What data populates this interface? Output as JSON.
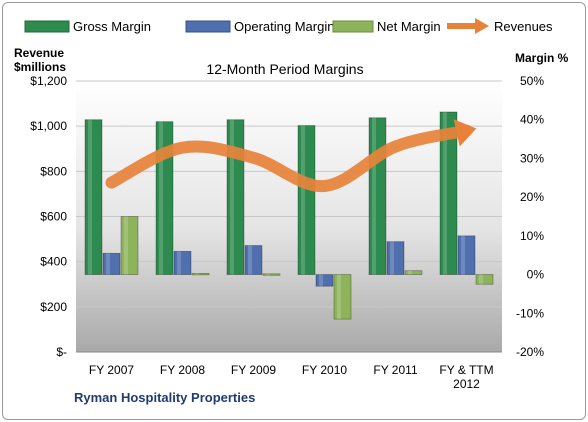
{
  "chart_data": {
    "type": "bar",
    "title": "12-Month Period Margins",
    "company": "Ryman Hospitality Properties",
    "categories": [
      "FY 2007",
      "FY 2008",
      "FY 2009",
      "FY 2010",
      "FY 2011",
      "FY & TTM|2012"
    ],
    "left_axis": {
      "label_line1": "Revenue",
      "label_line2": "$millions",
      "ticks": [
        "$-",
        "$200",
        "$400",
        "$600",
        "$800",
        "$1,000",
        "$1,200"
      ],
      "range": [
        0,
        1200
      ]
    },
    "right_axis": {
      "label": "Margin %",
      "ticks": [
        "-20%",
        "-10%",
        "0%",
        "10%",
        "20%",
        "30%",
        "40%",
        "50%"
      ],
      "range": [
        -20,
        50
      ]
    },
    "series": [
      {
        "name": "Gross Margin",
        "kind": "bar",
        "axis": "right",
        "color": "#2e8b4f",
        "values": [
          40,
          39.5,
          40,
          38.5,
          40.5,
          42
        ]
      },
      {
        "name": "Operating Margin",
        "kind": "bar",
        "axis": "right",
        "color": "#4f6fae",
        "values": [
          5.5,
          6,
          7.5,
          -3,
          8.5,
          10
        ]
      },
      {
        "name": "Net Margin",
        "kind": "bar",
        "axis": "right",
        "color": "#8db45a",
        "values": [
          15,
          0.3,
          0.2,
          -11.5,
          1,
          -2.5
        ]
      },
      {
        "name": "Revenues",
        "kind": "line",
        "axis": "left",
        "color": "#e8823a",
        "values": [
          750,
          905,
          860,
          735,
          910,
          980
        ]
      }
    ],
    "grid": true,
    "legend": "top"
  }
}
